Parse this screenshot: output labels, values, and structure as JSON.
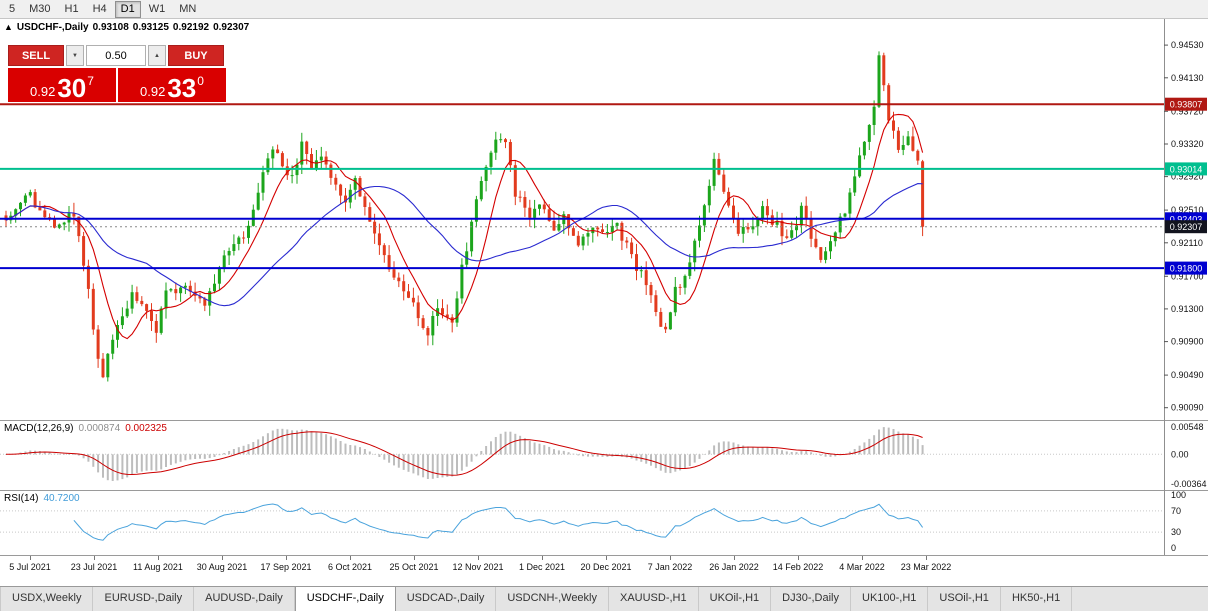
{
  "toolbar": {
    "timeframes": [
      {
        "label": "5",
        "active": false
      },
      {
        "label": "M30",
        "active": false
      },
      {
        "label": "H1",
        "active": false
      },
      {
        "label": "H4",
        "active": false
      },
      {
        "label": "D1",
        "active": true
      },
      {
        "label": "W1",
        "active": false
      },
      {
        "label": "MN",
        "active": false
      }
    ]
  },
  "chart_header": {
    "collapse_icon": "▲",
    "symbol": "USDCHF-,Daily",
    "open": "0.93108",
    "high": "0.93125",
    "low": "0.92192",
    "close": "0.92307"
  },
  "trade_panel": {
    "sell_label": "SELL",
    "buy_label": "BUY",
    "volume": "0.50",
    "spin_down_icon": "▼",
    "spin_up_icon": "▲",
    "sell_price": {
      "big_figure": "0.92",
      "pips": "30",
      "pip_fraction": "7"
    },
    "buy_price": {
      "big_figure": "0.92",
      "pips": "33",
      "pip_fraction": "0"
    }
  },
  "macd_panel": {
    "label": "MACD(12,26,9)",
    "value_main": "0.000874",
    "value_signal": "0.002325",
    "ticks": [
      "0.00548",
      "0.00",
      "-0.00364"
    ]
  },
  "rsi_panel": {
    "label": "RSI(14)",
    "value": "40.7200",
    "ticks": [
      100,
      70,
      30,
      0
    ],
    "levels": [
      70,
      30
    ]
  },
  "date_axis": {
    "labels": [
      "5 Jul 2021",
      "23 Jul 2021",
      "11 Aug 2021",
      "30 Aug 2021",
      "17 Sep 2021",
      "6 Oct 2021",
      "25 Oct 2021",
      "12 Nov 2021",
      "1 Dec 2021",
      "20 Dec 2021",
      "7 Jan 2022",
      "26 Jan 2022",
      "14 Feb 2022",
      "4 Mar 2022",
      "23 Mar 2022"
    ]
  },
  "tabs": {
    "items": [
      {
        "label": "USDX,Weekly",
        "active": false
      },
      {
        "label": "EURUSD-,Daily",
        "active": false
      },
      {
        "label": "AUDUSD-,Daily",
        "active": false
      },
      {
        "label": "USDCHF-,Daily",
        "active": true
      },
      {
        "label": "USDCAD-,Daily",
        "active": false
      },
      {
        "label": "USDCNH-,Weekly",
        "active": false
      },
      {
        "label": "XAUUSD-,H1",
        "active": false
      },
      {
        "label": "UKOil-,H1",
        "active": false
      },
      {
        "label": "DJ30-,Daily",
        "active": false
      },
      {
        "label": "UK100-,H1",
        "active": false
      },
      {
        "label": "USOil-,H1",
        "active": false
      },
      {
        "label": "HK50-,H1",
        "active": false
      }
    ]
  },
  "chart_data": {
    "type": "candlestick",
    "symbol": "USDCHF",
    "timeframe": "Daily",
    "last_ohlc": {
      "open": 0.93108,
      "high": 0.93125,
      "low": 0.92192,
      "close": 0.92307
    },
    "y_ticks": [
      "0.94530",
      "0.94130",
      "0.93720",
      "0.93320",
      "0.92920",
      "0.92510",
      "0.92110",
      "0.91700",
      "0.91300",
      "0.90900",
      "0.90490",
      "0.90090"
    ],
    "price_range": {
      "top": 0.9485,
      "bottom": 0.8994
    },
    "num_candles": 190,
    "price_path_anchors": [
      [
        0,
        0.9245
      ],
      [
        5,
        0.9268
      ],
      [
        10,
        0.9225
      ],
      [
        14,
        0.9248
      ],
      [
        17,
        0.915
      ],
      [
        19,
        0.907
      ],
      [
        20,
        0.9052
      ],
      [
        23,
        0.9105
      ],
      [
        26,
        0.9152
      ],
      [
        28,
        0.9138
      ],
      [
        31,
        0.9102
      ],
      [
        33,
        0.9148
      ],
      [
        37,
        0.9162
      ],
      [
        41,
        0.9138
      ],
      [
        45,
        0.9196
      ],
      [
        49,
        0.9218
      ],
      [
        53,
        0.9295
      ],
      [
        55,
        0.9325
      ],
      [
        59,
        0.9288
      ],
      [
        61,
        0.9335
      ],
      [
        63,
        0.9302
      ],
      [
        65,
        0.9315
      ],
      [
        68,
        0.9282
      ],
      [
        70,
        0.9262
      ],
      [
        72,
        0.9292
      ],
      [
        75,
        0.9235
      ],
      [
        78,
        0.9195
      ],
      [
        81,
        0.916
      ],
      [
        84,
        0.9132
      ],
      [
        87,
        0.91
      ],
      [
        89,
        0.9132
      ],
      [
        92,
        0.9112
      ],
      [
        94,
        0.918
      ],
      [
        96,
        0.9232
      ],
      [
        98,
        0.929
      ],
      [
        101,
        0.9332
      ],
      [
        103,
        0.934
      ],
      [
        105,
        0.9272
      ],
      [
        108,
        0.9242
      ],
      [
        110,
        0.9262
      ],
      [
        113,
        0.9232
      ],
      [
        115,
        0.9242
      ],
      [
        118,
        0.9212
      ],
      [
        121,
        0.9232
      ],
      [
        123,
        0.9222
      ],
      [
        126,
        0.9232
      ],
      [
        129,
        0.9192
      ],
      [
        132,
        0.9162
      ],
      [
        134,
        0.912
      ],
      [
        136,
        0.9102
      ],
      [
        138,
        0.9152
      ],
      [
        141,
        0.9182
      ],
      [
        143,
        0.9232
      ],
      [
        145,
        0.9282
      ],
      [
        146,
        0.9318
      ],
      [
        148,
        0.9272
      ],
      [
        149,
        0.9252
      ],
      [
        151,
        0.9222
      ],
      [
        154,
        0.9232
      ],
      [
        156,
        0.9252
      ],
      [
        159,
        0.9232
      ],
      [
        161,
        0.9212
      ],
      [
        164,
        0.9252
      ],
      [
        166,
        0.9222
      ],
      [
        168,
        0.9192
      ],
      [
        170,
        0.9212
      ],
      [
        173,
        0.9252
      ],
      [
        175,
        0.9292
      ],
      [
        177,
        0.9332
      ],
      [
        179,
        0.9382
      ],
      [
        180,
        0.9438
      ],
      [
        181,
        0.9402
      ],
      [
        182,
        0.9362
      ],
      [
        184,
        0.9325
      ],
      [
        186,
        0.9345
      ],
      [
        188,
        0.9312
      ],
      [
        189,
        0.92307
      ]
    ],
    "hlines": [
      {
        "price": 0.93807,
        "label": "0.93807",
        "color": "#b01812"
      },
      {
        "price": 0.93014,
        "label": "0.93014",
        "color": "#00bf8f"
      },
      {
        "price": 0.92403,
        "label": "0.92403",
        "color": "#0000d0"
      },
      {
        "price": 0.918,
        "label": "0.91800",
        "color": "#0000d0"
      }
    ],
    "bid_badge": {
      "price": 0.92307,
      "label": "0.92307",
      "color": "#12141f"
    },
    "ma_fast_period": 8,
    "ma_slow_period": 30,
    "colors": {
      "up": "#1ca51c",
      "down": "#e23b1e",
      "ma_fast": "#d40000",
      "ma_slow": "#2a2ad0",
      "macd_hist": "#bdbdbd",
      "macd_signal": "#cc0000",
      "rsi_line": "#4aa3dc"
    }
  }
}
